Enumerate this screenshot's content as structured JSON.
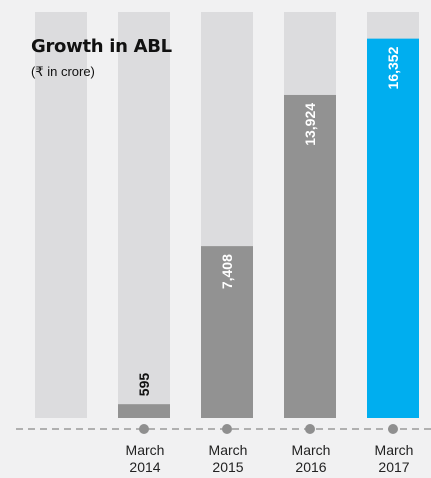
{
  "chart_data": {
    "type": "bar",
    "title": "Growth in ABL",
    "subtitle": "(₹ in crore)",
    "categories": [
      {
        "line1": "March",
        "line2": "2014"
      },
      {
        "line1": "March",
        "line2": "2015"
      },
      {
        "line1": "March",
        "line2": "2016"
      },
      {
        "line1": "March",
        "line2": "2017"
      }
    ],
    "values": [
      595,
      7408,
      13924,
      16352
    ],
    "value_labels": [
      "595",
      "7,408",
      "13,924",
      "16,352"
    ],
    "ylim": [
      0,
      17500
    ],
    "grid": false,
    "colors": {
      "background": "#f1f1f2",
      "column_track": "#dcdcde",
      "bar_default": "#929292",
      "bar_highlight": "#00aeef",
      "baseline": "#9a9a9a",
      "marker": "#8f8f8f"
    },
    "highlight_index": 3
  }
}
